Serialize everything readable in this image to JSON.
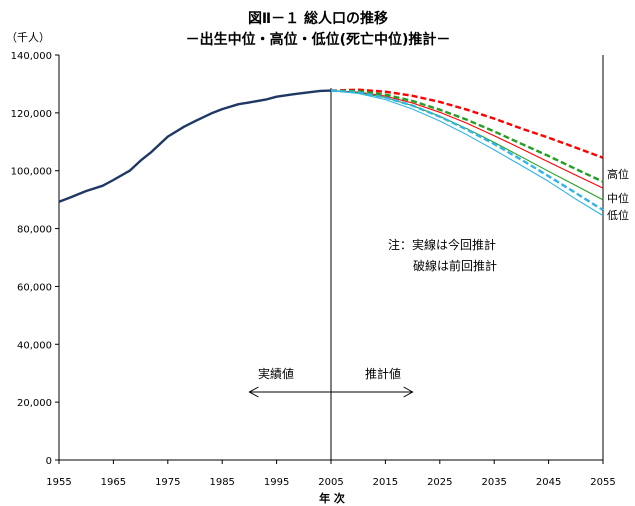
{
  "chart_data": {
    "type": "line",
    "title": "図Ⅱ－１ 総人口の推移",
    "subtitle": "－出生中位・高位・低位(死亡中位)推計－",
    "ylabel": "（千人）",
    "xlabel": "年 次",
    "xlim": [
      1955,
      2055
    ],
    "ylim": [
      0,
      140000
    ],
    "x_ticks": [
      1955,
      1965,
      1975,
      1985,
      1995,
      2005,
      2015,
      2025,
      2035,
      2045,
      2055
    ],
    "y_ticks": [
      0,
      20000,
      40000,
      60000,
      80000,
      100000,
      120000,
      140000
    ],
    "y_tick_labels": [
      "0",
      "20,000",
      "40,000",
      "60,000",
      "80,000",
      "100,000",
      "120,000",
      "140,000"
    ],
    "grid": false,
    "legend": "none",
    "line_end_labels": [
      "高位",
      "中位",
      "低位"
    ],
    "note_lines": [
      "注：実線は今回推計",
      "破線は前回推計"
    ],
    "region_labels": {
      "actual": "実績値",
      "projection": "推計値"
    },
    "arrow_range": [
      1990,
      2020
    ],
    "divider_year": 2005,
    "colors": {
      "actual": "#1F3864",
      "high": "#FF0000",
      "medium": "#22A022",
      "low": "#33B4E6"
    },
    "series": [
      {
        "key": "actual",
        "style": "solid",
        "x": [
          1955,
          1957,
          1960,
          1963,
          1965,
          1968,
          1970,
          1972,
          1975,
          1978,
          1980,
          1983,
          1985,
          1988,
          1990,
          1993,
          1995,
          1998,
          2000,
          2003,
          2005
        ],
        "values": [
          89300,
          90700,
          93000,
          94800,
          96800,
          100000,
          103500,
          106500,
          111800,
          115200,
          117100,
          119800,
          121300,
          123000,
          123600,
          124600,
          125600,
          126400,
          126900,
          127600,
          127700
        ]
      },
      {
        "key": "high",
        "style": "solid",
        "x": [
          2005,
          2010,
          2015,
          2020,
          2025,
          2030,
          2035,
          2040,
          2045,
          2050,
          2055
        ],
        "values": [
          127700,
          127200,
          125800,
          123400,
          120200,
          116400,
          112100,
          107600,
          103000,
          98500,
          94000
        ]
      },
      {
        "key": "medium",
        "style": "solid",
        "x": [
          2005,
          2010,
          2015,
          2020,
          2025,
          2030,
          2035,
          2040,
          2045,
          2050,
          2055
        ],
        "values": [
          127700,
          127000,
          125300,
          122500,
          118800,
          114500,
          109800,
          104800,
          99800,
          94900,
          89900
        ]
      },
      {
        "key": "low",
        "style": "solid",
        "x": [
          2005,
          2010,
          2015,
          2020,
          2025,
          2030,
          2035,
          2040,
          2045,
          2050,
          2055
        ],
        "values": [
          127700,
          126700,
          124600,
          121300,
          117200,
          112400,
          107200,
          101800,
          96300,
          90200,
          84500
        ]
      },
      {
        "key": "high",
        "style": "dashed",
        "x": [
          2005,
          2010,
          2015,
          2020,
          2025,
          2030,
          2035,
          2040,
          2045,
          2050,
          2055
        ],
        "values": [
          127700,
          128000,
          127300,
          125900,
          123800,
          121100,
          118000,
          114600,
          111400,
          108000,
          104500
        ]
      },
      {
        "key": "medium",
        "style": "dashed",
        "x": [
          2005,
          2010,
          2015,
          2020,
          2025,
          2030,
          2035,
          2040,
          2045,
          2050,
          2055
        ],
        "values": [
          127700,
          127500,
          126300,
          124100,
          121100,
          117600,
          113600,
          109300,
          105100,
          100600,
          96200
        ]
      },
      {
        "key": "low",
        "style": "dashed",
        "x": [
          2005,
          2010,
          2015,
          2020,
          2025,
          2030,
          2035,
          2040,
          2045,
          2050,
          2055
        ],
        "values": [
          127700,
          127100,
          125300,
          122500,
          118700,
          114200,
          109200,
          103800,
          98100,
          92300,
          86400
        ]
      }
    ]
  }
}
